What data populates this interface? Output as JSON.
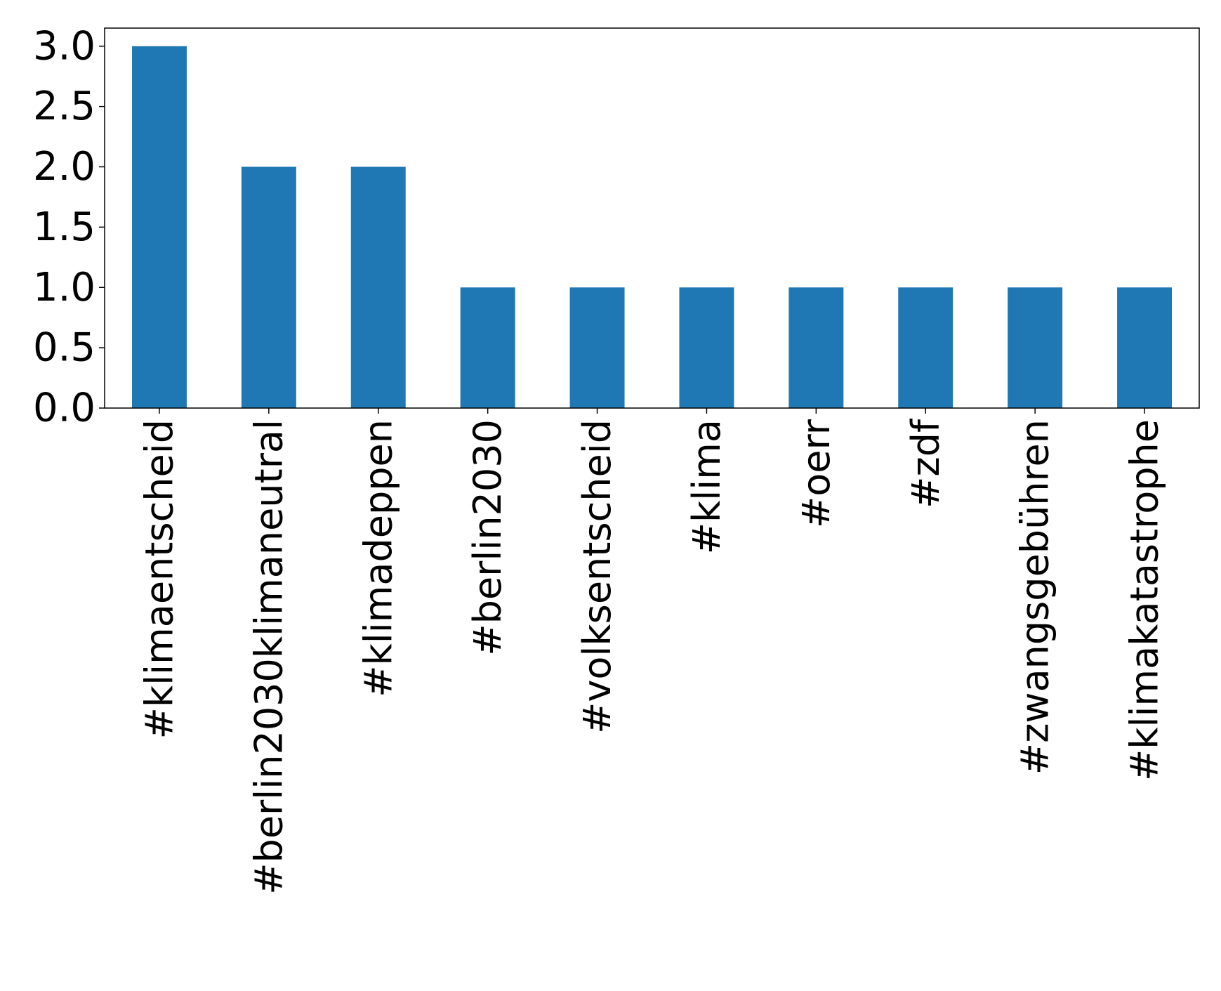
{
  "chart_data": {
    "type": "bar",
    "categories": [
      "#klimaentscheid",
      "#berlin2030klimaneutral",
      "#klimadeppen",
      "#berlin2030",
      "#volksentscheid",
      "#klima",
      "#oerr",
      "#zdf",
      "#zwangsgebühren",
      "#klimakatastrophe"
    ],
    "values": [
      3,
      2,
      2,
      1,
      1,
      1,
      1,
      1,
      1,
      1
    ],
    "color": "#1f77b4",
    "ylim": [
      0,
      3.15
    ],
    "yticks": [
      {
        "value": 0,
        "label": "0.0"
      },
      0.5,
      {
        "value": 1,
        "label": "1.0"
      },
      1.5,
      {
        "value": 2,
        "label": "2.0"
      },
      2.5,
      {
        "value": 3,
        "label": "3.0"
      }
    ],
    "grid": false
  }
}
